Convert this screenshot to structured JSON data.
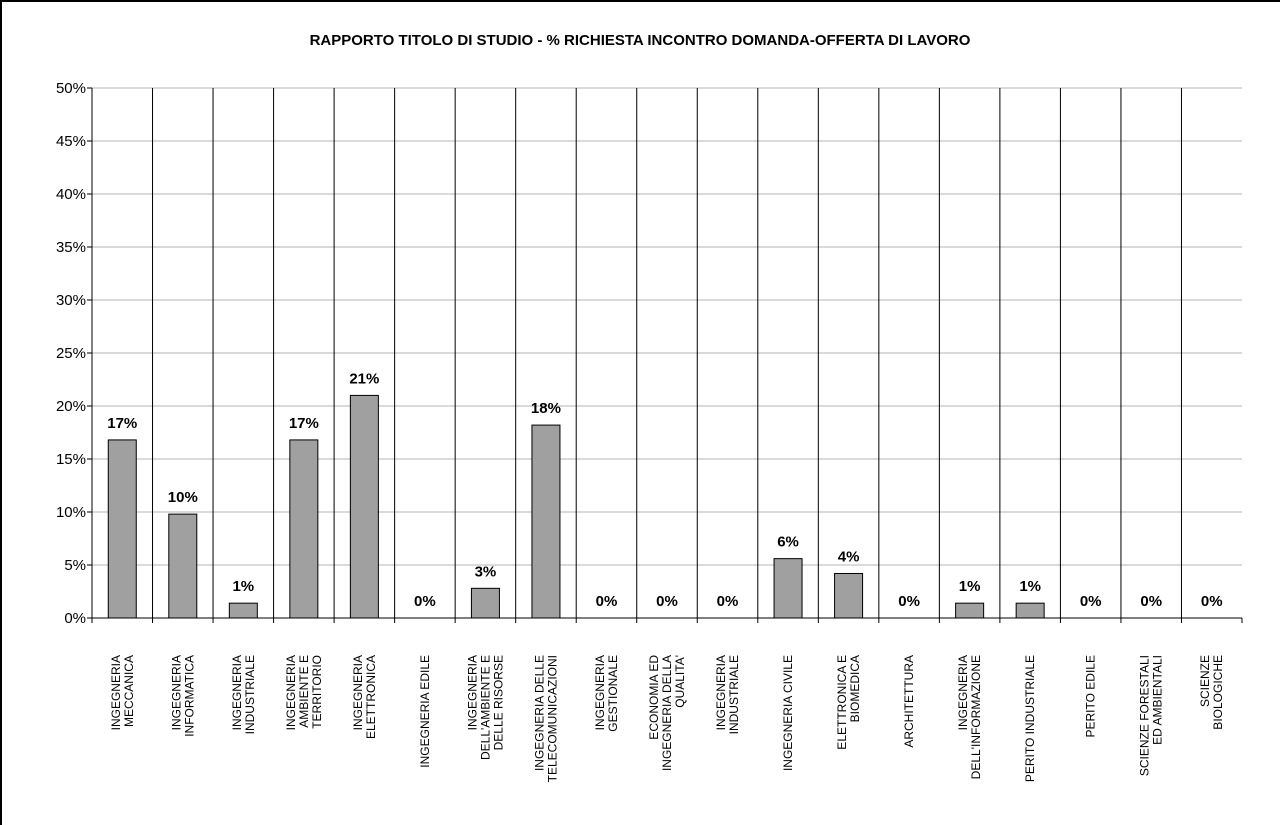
{
  "chart_data": {
    "type": "bar",
    "title": "RAPPORTO TITOLO DI STUDIO - % RICHIESTA INCONTRO DOMANDA-OFFERTA DI LAVORO",
    "xlabel": "",
    "ylabel": "",
    "ylim": [
      0,
      50
    ],
    "yticks": [
      "0%",
      "5%",
      "10%",
      "15%",
      "20%",
      "25%",
      "30%",
      "35%",
      "40%",
      "45%",
      "50%"
    ],
    "grid": "horizontal",
    "bar_color": "#a0a0a0",
    "categories": [
      [
        "INGEGNERIA",
        "MECCANICA"
      ],
      [
        "INGEGNERIA",
        "INFORMATICA"
      ],
      [
        "INGEGNERIA",
        "INDUSTRIALE"
      ],
      [
        "INGEGNERIA",
        "AMBIENTE E",
        "TERRITORIO"
      ],
      [
        "INGEGNERIA",
        "ELETTRONICA"
      ],
      [
        "INGEGNERIA EDILE"
      ],
      [
        "INGEGNERIA",
        "DELL'AMBIENTE E",
        "DELLE RISORSE"
      ],
      [
        "INGEGNERIA DELLE",
        "TELECOMUNICAZIONI"
      ],
      [
        "INGEGNERIA",
        "GESTIONALE"
      ],
      [
        "ECONOMIA ED",
        "INGEGNERIA DELLA",
        "QUALITA'"
      ],
      [
        "INGEGNERIA",
        "INDUSTRIALE"
      ],
      [
        "INGEGNERIA CIVILE"
      ],
      [
        "ELETTRONICA E",
        "BIOMEDICA"
      ],
      [
        "ARCHITETTURA"
      ],
      [
        "INGEGNERIA",
        "DELL'INFORMAZIONE"
      ],
      [
        "PERITO INDUSTRIALE"
      ],
      [
        "PERITO EDILE"
      ],
      [
        "SCIENZE FORESTALI",
        "ED AMBIENTALI"
      ],
      [
        "SCIENZE",
        "BIOLOGICHE"
      ]
    ],
    "values": [
      16.8,
      9.8,
      1.4,
      16.8,
      21.0,
      0,
      2.8,
      18.2,
      0,
      0,
      0,
      5.6,
      4.2,
      0,
      1.4,
      1.4,
      0,
      0,
      0
    ],
    "value_labels": [
      "17%",
      "10%",
      "1%",
      "17%",
      "21%",
      "0%",
      "3%",
      "18%",
      "0%",
      "0%",
      "0%",
      "6%",
      "4%",
      "0%",
      "1%",
      "1%",
      "0%",
      "0%",
      "0%"
    ]
  }
}
